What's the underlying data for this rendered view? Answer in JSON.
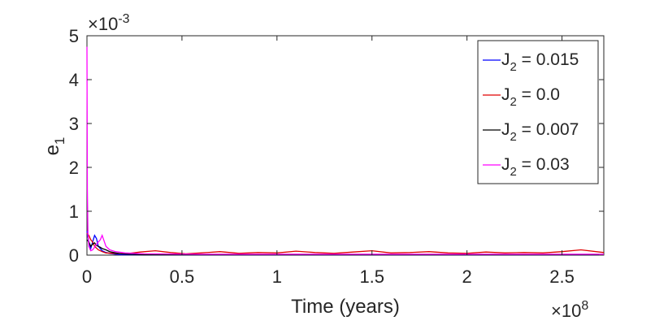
{
  "chart_data": {
    "type": "line",
    "xlabel": "Time (years)",
    "ylabel": "e",
    "ylabel_sub": "1",
    "x_exponent_label": "×10",
    "x_exponent_power": "8",
    "y_exponent_label": "×10",
    "y_exponent_power": "-3",
    "xlim": [
      0,
      2.72
    ],
    "ylim": [
      0,
      5
    ],
    "x_ticks": [
      0,
      0.5,
      1,
      1.5,
      2,
      2.5
    ],
    "x_tick_labels": [
      "0",
      "0.5",
      "1",
      "1.5",
      "2",
      "2.5"
    ],
    "y_ticks": [
      0,
      1,
      2,
      3,
      4,
      5
    ],
    "y_tick_labels": [
      "0",
      "1",
      "2",
      "3",
      "4",
      "5"
    ],
    "grid": false,
    "legend_position": "top-right",
    "series": [
      {
        "name": "J",
        "name_sub": "2",
        "name_value": " = 0.015",
        "color": "#0000ff",
        "x": [
          0,
          0.01,
          0.02,
          0.03,
          0.04,
          0.05,
          0.06,
          0.08,
          0.1,
          0.12,
          0.15,
          0.18,
          0.2,
          0.25,
          0.4,
          0.6,
          0.8,
          1.0,
          1.2,
          1.4,
          1.6,
          1.8,
          2.0,
          2.2,
          2.4,
          2.6,
          2.72
        ],
        "y": [
          0.55,
          0.3,
          0.15,
          0.3,
          0.45,
          0.38,
          0.2,
          0.1,
          0.06,
          0.04,
          0.02,
          0.01,
          0.01,
          0.01,
          0.01,
          0.01,
          0.01,
          0.01,
          0.01,
          0.01,
          0.01,
          0.01,
          0.01,
          0.01,
          0.01,
          0.01,
          0.01
        ]
      },
      {
        "name": "J",
        "name_sub": "2",
        "name_value": " = 0.0",
        "color": "#e00000",
        "x": [
          0,
          0.01,
          0.02,
          0.03,
          0.04,
          0.06,
          0.08,
          0.1,
          0.14,
          0.2,
          0.28,
          0.36,
          0.44,
          0.52,
          0.6,
          0.7,
          0.8,
          0.9,
          1.0,
          1.1,
          1.2,
          1.3,
          1.4,
          1.5,
          1.6,
          1.7,
          1.8,
          1.9,
          2.0,
          2.1,
          2.2,
          2.3,
          2.4,
          2.5,
          2.6,
          2.72
        ],
        "y": [
          0.5,
          0.45,
          0.35,
          0.3,
          0.2,
          0.12,
          0.08,
          0.05,
          0.04,
          0.03,
          0.07,
          0.1,
          0.06,
          0.03,
          0.05,
          0.08,
          0.04,
          0.06,
          0.05,
          0.09,
          0.06,
          0.04,
          0.07,
          0.1,
          0.05,
          0.06,
          0.08,
          0.05,
          0.04,
          0.07,
          0.05,
          0.06,
          0.05,
          0.08,
          0.12,
          0.06
        ]
      },
      {
        "name": "J",
        "name_sub": "2",
        "name_value": " = 0.007",
        "color": "#000000",
        "x": [
          0,
          0.01,
          0.02,
          0.03,
          0.04,
          0.05,
          0.06,
          0.07,
          0.08,
          0.1,
          0.12,
          0.15,
          0.18,
          0.22,
          0.3,
          0.5,
          0.8,
          1.1,
          1.4,
          1.7,
          2.0,
          2.3,
          2.6,
          2.72
        ],
        "y": [
          0.35,
          0.3,
          0.2,
          0.25,
          0.28,
          0.22,
          0.2,
          0.18,
          0.15,
          0.12,
          0.08,
          0.05,
          0.03,
          0.02,
          0.01,
          0.01,
          0.01,
          0.01,
          0.01,
          0.01,
          0.01,
          0.01,
          0.01,
          0.01
        ]
      },
      {
        "name": "J",
        "name_sub": "2",
        "name_value": " = 0.03",
        "color": "#ff00ff",
        "x": [
          0,
          0.002,
          0.005,
          0.01,
          0.02,
          0.03,
          0.04,
          0.05,
          0.06,
          0.07,
          0.08,
          0.1,
          0.12,
          0.15,
          0.2,
          0.3,
          0.6,
          1.0,
          1.5,
          2.0,
          2.5,
          2.72
        ],
        "y": [
          4.75,
          1.5,
          0.5,
          0.2,
          0.1,
          0.12,
          0.18,
          0.25,
          0.3,
          0.35,
          0.45,
          0.2,
          0.12,
          0.08,
          0.05,
          0.03,
          0.02,
          0.02,
          0.02,
          0.02,
          0.02,
          0.02
        ]
      }
    ]
  }
}
